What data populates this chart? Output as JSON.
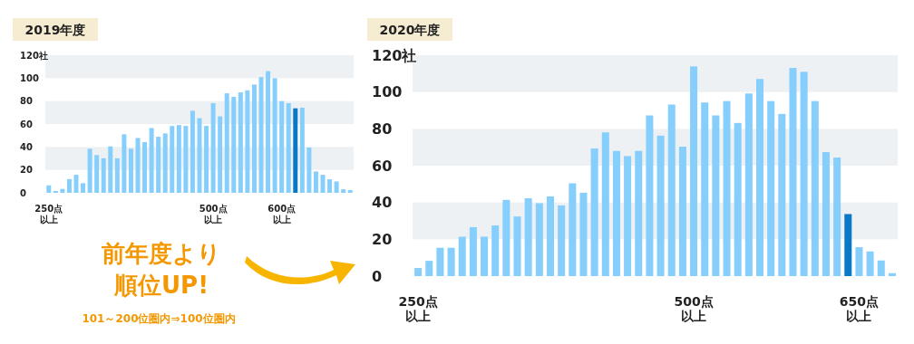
{
  "chart_data": [
    {
      "type": "bar",
      "title": "2019年度",
      "categories": [
        "250点以上",
        null,
        null,
        null,
        null,
        null,
        null,
        null,
        null,
        null,
        null,
        null,
        null,
        null,
        null,
        null,
        null,
        null,
        null,
        null,
        null,
        null,
        null,
        null,
        "500点以上",
        null,
        null,
        null,
        null,
        null,
        null,
        null,
        null,
        null,
        "600点以上",
        null,
        null,
        null,
        null,
        null,
        null,
        null,
        null,
        null,
        null
      ],
      "values": [
        6.5,
        1.6,
        3.4,
        12,
        15.7,
        8.4,
        38.4,
        32.9,
        30.1,
        40.5,
        30.1,
        51,
        38.4,
        47.8,
        44.2,
        56.5,
        48.9,
        51.8,
        58.3,
        59.1,
        58.3,
        71.6,
        65.1,
        58.3,
        78.2,
        66.7,
        86.8,
        83.7,
        87.6,
        89.4,
        94.4,
        100.9,
        106.1,
        99.9,
        80,
        78.2,
        73.7,
        74.2,
        39.5,
        18.6,
        15.7,
        11.8,
        9.9,
        3.1,
        2.4
      ],
      "colors": [
        "#86cefc",
        "#86cefc",
        "#86cefc",
        "#86cefc",
        "#86cefc",
        "#86cefc",
        "#86cefc",
        "#86cefc",
        "#86cefc",
        "#86cefc",
        "#86cefc",
        "#86cefc",
        "#86cefc",
        "#86cefc",
        "#86cefc",
        "#86cefc",
        "#86cefc",
        "#86cefc",
        "#86cefc",
        "#86cefc",
        "#86cefc",
        "#86cefc",
        "#86cefc",
        "#86cefc",
        "#86cefc",
        "#86cefc",
        "#86cefc",
        "#86cefc",
        "#86cefc",
        "#86cefc",
        "#86cefc",
        "#86cefc",
        "#86cefc",
        "#86cefc",
        "#86cefc",
        "#86cefc",
        "#0a78c8",
        "#86cefc",
        "#86cefc",
        "#86cefc",
        "#86cefc",
        "#86cefc",
        "#86cefc",
        "#86cefc",
        "#86cefc"
      ],
      "ylim": [
        0,
        120
      ],
      "yticks": [
        0,
        20,
        40,
        60,
        80,
        100,
        {
          "value": 120,
          "label": "120社"
        }
      ],
      "bands": [
        {
          "axis": "y",
          "from": 20,
          "to": 40,
          "color": "#edf1f4"
        },
        {
          "axis": "y",
          "from": 60,
          "to": 80,
          "color": "#edf1f4"
        },
        {
          "axis": "y",
          "from": 100,
          "to": 120,
          "color": "#edf1f4"
        }
      ],
      "annotations": [
        "前年度より",
        "順位UP!",
        "101～200位圏内⇒100位圏内"
      ]
    },
    {
      "type": "bar",
      "title": "2020年度",
      "categories": [
        "250点以上",
        null,
        null,
        null,
        null,
        null,
        null,
        null,
        null,
        null,
        null,
        null,
        null,
        null,
        null,
        null,
        null,
        null,
        null,
        null,
        null,
        null,
        null,
        null,
        null,
        "500点以上",
        null,
        null,
        null,
        null,
        null,
        null,
        null,
        null,
        null,
        null,
        null,
        null,
        null,
        null,
        "650点以上",
        null,
        null,
        null
      ],
      "values": [
        4.4,
        8.3,
        15.4,
        15.4,
        21.4,
        26.6,
        21.4,
        27.5,
        41.4,
        32.4,
        42.3,
        39.6,
        43.3,
        38.4,
        50.4,
        45.3,
        69.3,
        78.1,
        68,
        65.2,
        68,
        87.3,
        76.3,
        93.2,
        70.3,
        113.9,
        94.3,
        87.3,
        95.1,
        83.2,
        99.2,
        107.1,
        95.1,
        88.1,
        113.1,
        111,
        95.1,
        67.4,
        64.4,
        33.7,
        15.7,
        13.4,
        8.5,
        1.6
      ],
      "colors": [
        "#86cefc",
        "#86cefc",
        "#86cefc",
        "#86cefc",
        "#86cefc",
        "#86cefc",
        "#86cefc",
        "#86cefc",
        "#86cefc",
        "#86cefc",
        "#86cefc",
        "#86cefc",
        "#86cefc",
        "#86cefc",
        "#86cefc",
        "#86cefc",
        "#86cefc",
        "#86cefc",
        "#86cefc",
        "#86cefc",
        "#86cefc",
        "#86cefc",
        "#86cefc",
        "#86cefc",
        "#86cefc",
        "#86cefc",
        "#86cefc",
        "#86cefc",
        "#86cefc",
        "#86cefc",
        "#86cefc",
        "#86cefc",
        "#86cefc",
        "#86cefc",
        "#86cefc",
        "#86cefc",
        "#86cefc",
        "#86cefc",
        "#86cefc",
        "#0a78c8",
        "#86cefc",
        "#86cefc",
        "#86cefc",
        "#86cefc"
      ],
      "ylim": [
        0,
        120
      ],
      "yticks": [
        0,
        20,
        40,
        60,
        80,
        100,
        {
          "value": 120,
          "label": "120社"
        }
      ],
      "bands": [
        {
          "axis": "y",
          "from": 20,
          "to": 40,
          "color": "#edf1f4"
        },
        {
          "axis": "y",
          "from": 60,
          "to": 80,
          "color": "#edf1f4"
        },
        {
          "axis": "y",
          "from": 100,
          "to": 120,
          "color": "#edf1f4"
        }
      ]
    }
  ]
}
